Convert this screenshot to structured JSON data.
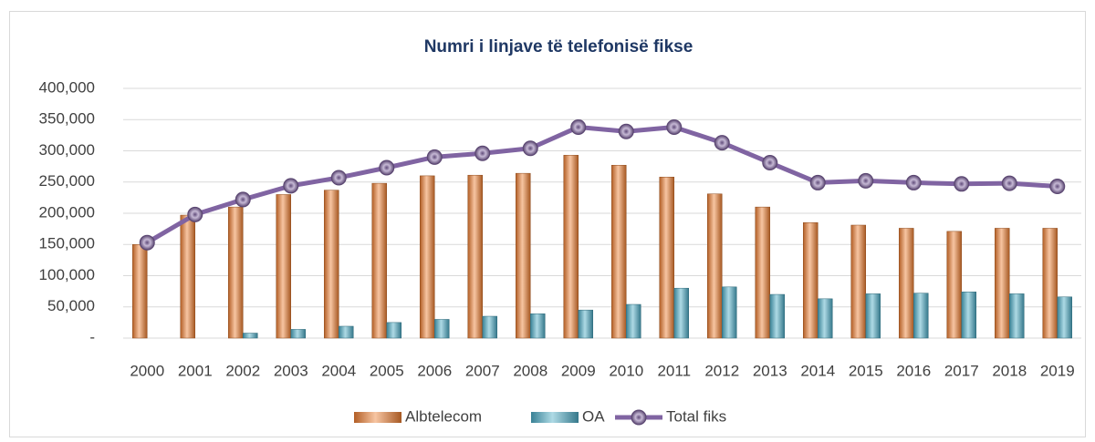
{
  "chart_data": {
    "type": "bar-line",
    "title": "Numri i linjave të telefonisë fikse",
    "categories": [
      "2000",
      "2001",
      "2002",
      "2003",
      "2004",
      "2005",
      "2006",
      "2007",
      "2008",
      "2009",
      "2010",
      "2011",
      "2012",
      "2013",
      "2014",
      "2015",
      "2016",
      "2017",
      "2018",
      "2019"
    ],
    "series": [
      {
        "name": "Albtelecom",
        "type": "bar",
        "color": "#ed7d31",
        "values": [
          150000,
          197000,
          210000,
          230000,
          237000,
          248000,
          260000,
          261000,
          264000,
          293000,
          277000,
          258000,
          231000,
          210000,
          185000,
          181000,
          176000,
          171000,
          176000,
          176000
        ]
      },
      {
        "name": "OA",
        "type": "bar",
        "color": "#4bacc6",
        "values": [
          0,
          0,
          8000,
          14000,
          19000,
          25000,
          30000,
          35000,
          39000,
          45000,
          54000,
          80000,
          82000,
          70000,
          63000,
          71000,
          72000,
          74000,
          71000,
          66000
        ]
      },
      {
        "name": "Total fiks",
        "type": "line",
        "color": "#8064a2",
        "values": [
          153000,
          198000,
          222000,
          244000,
          257000,
          273000,
          290000,
          296000,
          304000,
          338000,
          331000,
          338000,
          313000,
          281000,
          249000,
          252000,
          249000,
          247000,
          248000,
          243000
        ]
      }
    ],
    "ylim": [
      0,
      400000
    ],
    "yticks": [
      {
        "value": 0,
        "label": "-"
      },
      {
        "value": 50000,
        "label": "50,000"
      },
      {
        "value": 100000,
        "label": "100,000"
      },
      {
        "value": 150000,
        "label": "150,000"
      },
      {
        "value": 200000,
        "label": "200,000"
      },
      {
        "value": 250000,
        "label": "250,000"
      },
      {
        "value": 300000,
        "label": "300,000"
      },
      {
        "value": 350000,
        "label": "350,000"
      },
      {
        "value": 400000,
        "label": "400,000"
      }
    ],
    "grid": true,
    "legend": "bottom"
  }
}
